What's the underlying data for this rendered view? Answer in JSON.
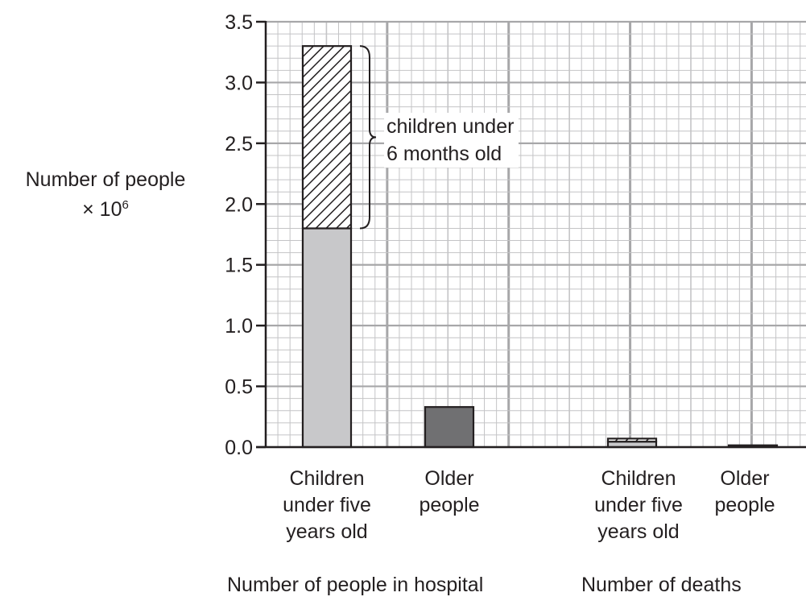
{
  "chart_data": {
    "type": "bar",
    "stacked": true,
    "ylabel_line1": "Number of people",
    "ylabel_line2_prefix": "× 10",
    "ylabel_line2_exp": "6",
    "ylim": [
      0,
      3.5
    ],
    "yticks": [
      "0.0",
      "0.5",
      "1.0",
      "1.5",
      "2.0",
      "2.5",
      "3.0",
      "3.5"
    ],
    "ytick_values": [
      0,
      0.5,
      1.0,
      1.5,
      2.0,
      2.5,
      3.0,
      3.5
    ],
    "grid": true,
    "groups": [
      {
        "label": "Number of people in hospital",
        "categories": [
          {
            "label_lines": [
              "Children",
              "under five",
              "years old"
            ],
            "segments": [
              {
                "value": 1.8,
                "fill": "solid-light"
              },
              {
                "value": 1.5,
                "fill": "hatched"
              }
            ]
          },
          {
            "label_lines": [
              "Older",
              "people"
            ],
            "segments": [
              {
                "value": 0.33,
                "fill": "solid-dark"
              }
            ]
          }
        ]
      },
      {
        "label": "Number of deaths",
        "categories": [
          {
            "label_lines": [
              "Children",
              "under five",
              "years old"
            ],
            "segments": [
              {
                "value": 0.045,
                "fill": "solid-light"
              },
              {
                "value": 0.025,
                "fill": "hatched"
              }
            ]
          },
          {
            "label_lines": [
              "Older",
              "people"
            ],
            "segments": [
              {
                "value": 0.015,
                "fill": "solid-dark"
              }
            ]
          }
        ]
      }
    ],
    "annotation": {
      "lines": [
        "children under",
        "6 months old"
      ],
      "from": 1.8,
      "to": 3.3
    },
    "colors": {
      "solid-light": "#c8c8ca",
      "solid-dark": "#707072",
      "hatch": "#231f20",
      "grid-minor": "#c4c4c6",
      "grid-major": "#a7a7a9",
      "axis": "#231f20"
    }
  }
}
